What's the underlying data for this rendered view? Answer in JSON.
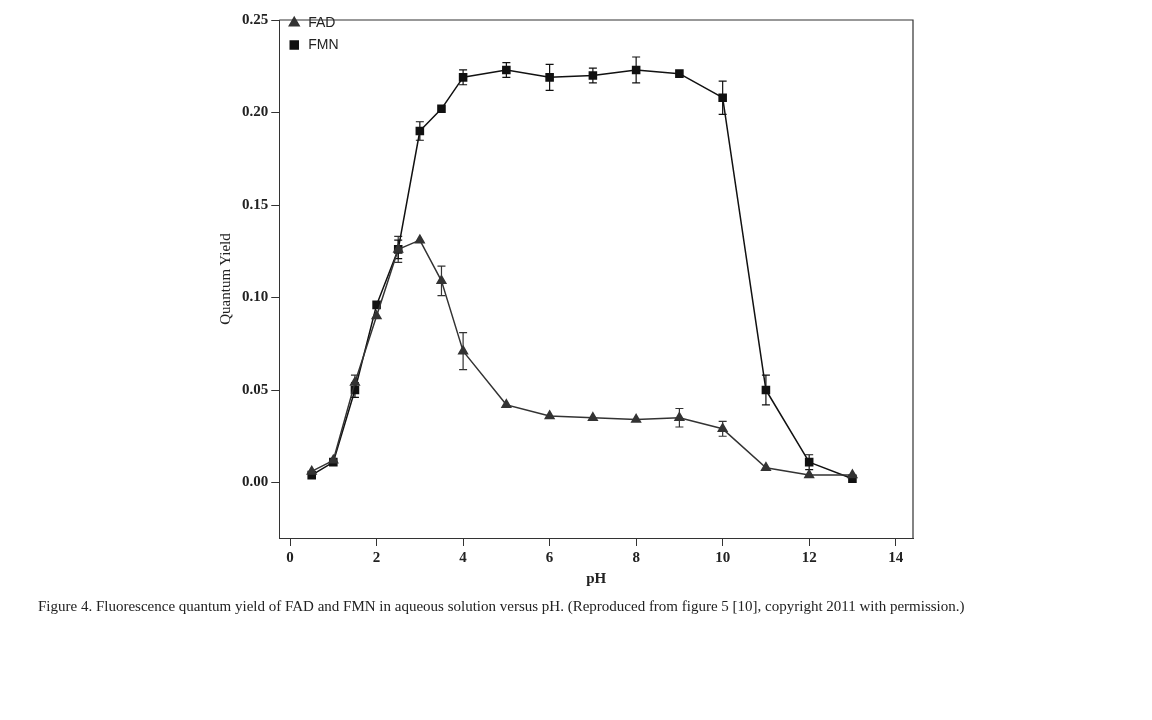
{
  "chart_data": {
    "type": "line",
    "xlabel": "pH",
    "ylabel": "Quantum Yield",
    "x": [
      0.5,
      1,
      1.5,
      2,
      2.5,
      3,
      3.5,
      4,
      5,
      6,
      7,
      8,
      9,
      10,
      11,
      12,
      13
    ],
    "series": [
      {
        "name": "FAD",
        "color": "#333333",
        "marker": "triangle",
        "values": [
          0.006,
          0.012,
          0.054,
          0.09,
          0.126,
          0.131,
          0.109,
          0.071,
          0.042,
          0.036,
          0.035,
          0.034,
          0.035,
          0.029,
          0.008,
          0.004,
          0.004
        ],
        "errors": [
          null,
          null,
          0.004,
          null,
          0.007,
          null,
          0.008,
          0.01,
          null,
          null,
          null,
          null,
          0.005,
          0.004,
          null,
          null,
          null
        ]
      },
      {
        "name": "FMN",
        "color": "#111111",
        "marker": "square",
        "values": [
          0.004,
          0.011,
          0.05,
          0.096,
          0.126,
          0.19,
          0.202,
          0.219,
          0.223,
          0.219,
          0.22,
          0.223,
          0.221,
          0.208,
          0.05,
          0.011,
          0.002
        ],
        "errors": [
          null,
          null,
          0.004,
          null,
          0.005,
          0.005,
          null,
          0.004,
          0.004,
          0.007,
          0.004,
          0.007,
          null,
          0.009,
          0.008,
          0.004,
          null
        ]
      }
    ],
    "xlim": [
      -0.25,
      14.4
    ],
    "xticks": [
      0,
      2,
      4,
      6,
      8,
      10,
      12,
      14
    ],
    "ylim": [
      -0.03,
      0.25
    ],
    "yticks": [
      {
        "value": 0,
        "label": "0.00"
      },
      {
        "value": 0.05,
        "label": "0.05"
      },
      {
        "value": 0.1,
        "label": "0.10"
      },
      {
        "value": 0.15,
        "label": "0.15"
      },
      {
        "value": 0.2,
        "label": "0.20"
      },
      {
        "value": 0.25,
        "label": "0.25"
      }
    ],
    "grid": false,
    "legend": "top left",
    "line_style": "solid",
    "annotations": [
      "Figure 4.  Fluorescence quantum yield of FAD and FMN in aqueous solution versus pH. (Reproduced from figure 5 [10], copyright 2011 with permission.)"
    ]
  }
}
